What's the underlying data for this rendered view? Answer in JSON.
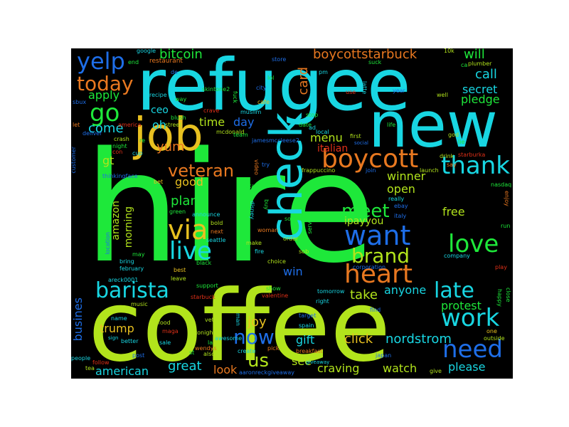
{
  "wordcloud": {
    "hire": "hire",
    "coffee": "coffee",
    "refugee": "refugee",
    "new": "new",
    "job": "job",
    "check": "check",
    "boycott": "boycott",
    "heart": "heart",
    "want": "want",
    "live": "live",
    "via": "via",
    "veteran": "veteran",
    "barista": "barista",
    "thank": "thank",
    "love": "love",
    "need": "need",
    "work": "work",
    "late": "late",
    "brand": "brand",
    "meet": "meet",
    "now": "now",
    "us": "us",
    "yelp": "yelp",
    "today": "today",
    "go": "go",
    "yum": "yum",
    "bitcoin": "bitcoin",
    "boycottstarbuck": "boycottstarbuck",
    "card": "card",
    "will": "will",
    "call": "call",
    "secret": "secret",
    "pledge": "pledge",
    "apply": "apply",
    "ceo": "ceo",
    "oh": "oh",
    "come": "come",
    "time": "time",
    "day": "day",
    "italian": "italian",
    "menu": "menu",
    "gt": "gt",
    "good": "good",
    "plan": "plan",
    "amazon": "amazon",
    "morning": "morning",
    "winner": "winner",
    "open": "open",
    "ipayyou": "ipayyou",
    "free": "free",
    "joy": "joy",
    "trump": "trump",
    "gift": "gift",
    "click": "click",
    "nordstrom": "nordstrom",
    "protest": "protest",
    "take": "take",
    "anyone": "anyone",
    "win": "win",
    "american": "american",
    "great": "great",
    "look": "look",
    "see": "see",
    "craving": "craving",
    "watch": "watch",
    "please": "please",
    "busines": "busines",
    "google": "google",
    "restaurant": "restaurant",
    "kill": "kill",
    "store": "store",
    "lol": "lol",
    "city": "city",
    "cafe": "cafe",
    "suck": "suck",
    "ca": "ca",
    "plumber": "plumber",
    "year": "year",
    "well": "well",
    "god": "god",
    "skintone2": "skintone2",
    "muslim": "muslim",
    "crave": "crave",
    "blush": "blush",
    "street": "street",
    "mcdonald": "mcdonald",
    "jamesmccleese2": "jamesmccleese2",
    "local": "local",
    "stop": "stop",
    "date": "date",
    "life": "life",
    "first": "first",
    "social": "social",
    "drink": "drink",
    "starburka": "starburka",
    "frappuccino": "frappuccino",
    "join": "join",
    "launch": "launch",
    "say": "say",
    "thinkingface": "thinkingface",
    "bet": "bet",
    "start": "start",
    "nasdaq": "nasdaq",
    "enjoy": "enjoy",
    "run": "run",
    "really": "really",
    "ebay": "ebay",
    "italy": "italy",
    "sound": "sound",
    "service": "service",
    "green": "green",
    "announce": "announce",
    "bold": "bold",
    "next": "next",
    "woman": "woman",
    "location": "location",
    "seattle": "seattle",
    "make": "make",
    "order": "order",
    "sob": "sob",
    "company": "company",
    "may": "may",
    "bring": "bring",
    "february": "february",
    "choice": "choice",
    "corporation": "corporation",
    "play": "play",
    "best": "best",
    "black": "black",
    "areck0001": "areck0001",
    "leave": "leave",
    "support": "support",
    "starbuck": "starbuck",
    "show": "show",
    "valentine": "valentine",
    "tomorrow": "tomorrow",
    "right": "right",
    "find": "find",
    "happy": "happy",
    "close": "close",
    "music": "music",
    "target": "target",
    "name": "name",
    "food": "food",
    "vet": "vet",
    "spain": "spain",
    "maga": "maga",
    "tonight": "tonight",
    "sign": "sign",
    "better": "better",
    "sale": "sale",
    "awesome": "awesome",
    "one": "one",
    "outside": "outside",
    "wendys": "wendys",
    "breakfast": "breakfast",
    "follow": "follow",
    "post": "post",
    "people": "people",
    "create": "create",
    "pick": "pick",
    "japan": "japan",
    "tea": "tea",
    "aaronreckgiveaway": "aaronreckgiveaway",
    "give": "give",
    "sbux": "sbux",
    "end": "end",
    "let": "let",
    "deliver": "deliver",
    "crash": "crash",
    "night": "night",
    "cup": "cup",
    "customer": "customer",
    "recipe": "recipe",
    "way": "way",
    "re": "re",
    "de": "de",
    "fuck": "fuck",
    "la": "la",
    "team": "team",
    "pm": "pm",
    "use": "use",
    "latte": "latte",
    "10k": "10k",
    "try": "try",
    "video": "video",
    "buy": "buy",
    "disney": "disney",
    "fire": "fire",
    "man": "man",
    "st": "st",
    "also": "also",
    "america": "america",
    "giveaway": "giveaway",
    "ad": "ad",
    "lie": "lie",
    "con": "con"
  },
  "colors": {
    "background": "#000000",
    "green": "#1ee83a",
    "cyan": "#18d6e2",
    "lime": "#b2e41c",
    "gold": "#e8c020",
    "orange": "#e87820",
    "blue": "#1e6ee8",
    "red": "#e03018"
  }
}
